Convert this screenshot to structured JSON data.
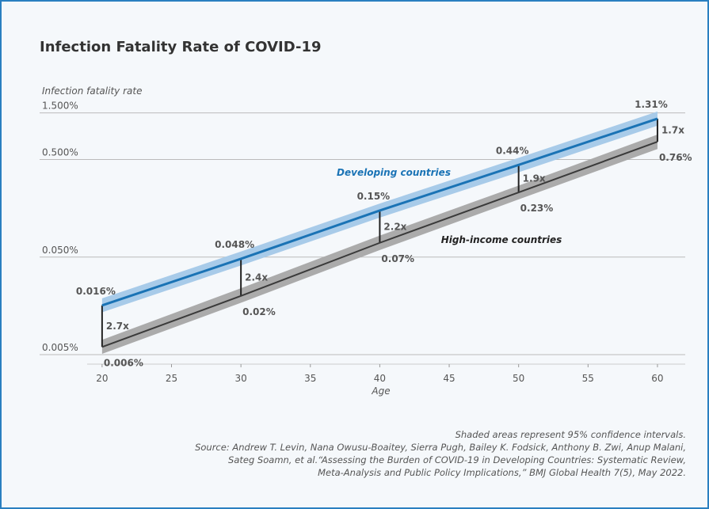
{
  "chart_data": {
    "type": "line",
    "title": "Infection Fatality Rate of COVID-19",
    "y_label": "Infection fatality rate",
    "x_label": "Age",
    "log_y": true,
    "grid": true,
    "x": [
      20,
      30,
      40,
      50,
      60
    ],
    "xlim": [
      15.5,
      62
    ],
    "xticks": [
      20,
      25,
      30,
      35,
      40,
      45,
      50,
      55,
      60
    ],
    "ylim": [
      0.004,
      1.9
    ],
    "yticks": [
      {
        "value": 0.005,
        "label": "0.005%"
      },
      {
        "value": 0.05,
        "label": "0.050%"
      },
      {
        "value": 0.5,
        "label": "0.500%"
      },
      {
        "value": 1.5,
        "label": "1.500%"
      }
    ],
    "series": [
      {
        "name": "Developing countries",
        "color": "#1a73b5",
        "band_color": "#a8cbe9",
        "values": [
          0.016,
          0.048,
          0.15,
          0.44,
          1.31
        ],
        "value_labels": [
          "0.016%",
          "0.048%",
          "0.15%",
          "0.44%",
          "1.31%"
        ],
        "lower": [
          0.0136,
          0.041,
          0.127,
          0.37,
          1.11
        ],
        "upper": [
          0.0189,
          0.057,
          0.177,
          0.52,
          1.55
        ]
      },
      {
        "name": "High-income countries",
        "color": "#3a3a3a",
        "band_color": "#ababab",
        "values": [
          0.006,
          0.02,
          0.07,
          0.23,
          0.76
        ],
        "value_labels": [
          "0.006%",
          "0.02%",
          "0.07%",
          "0.23%",
          "0.76%"
        ],
        "lower": [
          0.0051,
          0.017,
          0.059,
          0.195,
          0.64
        ],
        "upper": [
          0.0071,
          0.024,
          0.083,
          0.27,
          0.9
        ]
      }
    ],
    "ratio_labels": [
      "2.7x",
      "2.4x",
      "2.2x",
      "1.9x",
      "1.7x"
    ],
    "notes": [
      "Shaded areas represent 95% confidence intervals.",
      "Source: Andrew T. Levin, Nana Owusu-Boaitey, Sierra Pugh, Bailey K. Fodsick, Anthony B. Zwi, Anup Malani,",
      "Sateg Soamn, et al.“Assessing the Burden of COVID-19 in Developing Countries: Systematic Review,",
      "Meta-Analysis and Public Policy Implications,” BMJ Global Health 7(5), May 2022."
    ]
  }
}
